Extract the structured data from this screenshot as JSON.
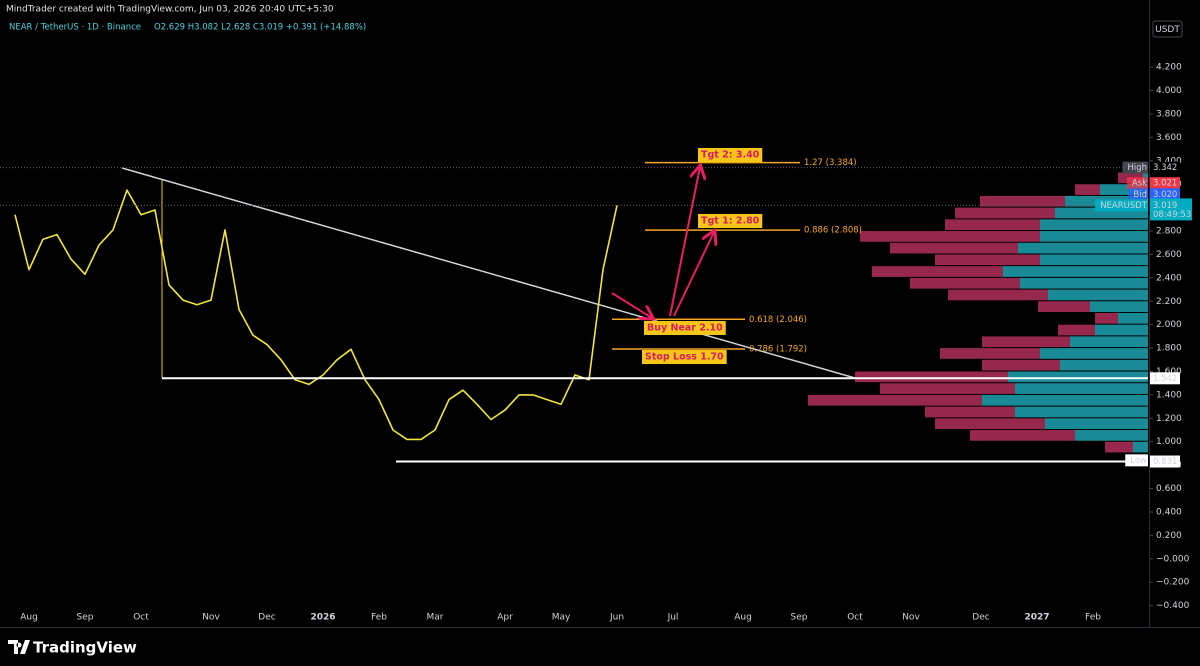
{
  "header": {
    "credit": "MindTrader created with TradingView.com, Jun 03, 2026 20:40 UTC+5:30",
    "symbol": "NEAR / TetherUS · 1D · Binance",
    "ohlc": "O2.629 H3.082 L2.628 C3.019 +0.391 (+14.88%)"
  },
  "chart_data": {
    "type": "line",
    "currency": "USDT",
    "categories": [
      null,
      "Aug",
      null,
      null,
      null,
      "Sep",
      null,
      null,
      null,
      "Oct",
      null,
      null,
      null,
      null,
      "Nov",
      null,
      null,
      null,
      "Dec",
      null,
      null,
      null,
      "2026",
      null,
      null,
      null,
      "Feb",
      null,
      null,
      null,
      "Mar",
      null,
      null,
      null,
      null,
      "Apr",
      null,
      null,
      null,
      "May",
      null,
      null,
      null,
      "Jun",
      null,
      null,
      null,
      "Jul",
      null,
      null,
      null,
      null,
      "Aug",
      null,
      null,
      null,
      "Sep",
      null,
      null,
      null,
      "Oct",
      null,
      null,
      null,
      "Nov",
      null,
      null,
      null,
      null,
      "Dec",
      null,
      null,
      null,
      "2027",
      null,
      null,
      null,
      "Feb",
      null,
      null,
      null
    ],
    "series": [
      {
        "name": "NEARUSDT",
        "color": "#f0e442",
        "values": [
          2.94,
          2.47,
          2.73,
          2.77,
          2.56,
          2.43,
          2.68,
          2.81,
          3.15,
          2.94,
          2.98,
          2.34,
          2.21,
          2.17,
          2.21,
          2.81,
          2.13,
          1.91,
          1.83,
          1.7,
          1.53,
          1.49,
          1.57,
          1.7,
          1.79,
          1.53,
          1.36,
          1.1,
          1.02,
          1.02,
          1.1,
          1.36,
          1.44,
          1.32,
          1.19,
          1.27,
          1.4,
          1.4,
          1.36,
          1.32,
          1.57,
          1.53,
          2.47,
          3.019,
          null,
          null,
          null,
          null,
          null,
          null,
          null,
          null,
          null,
          null,
          null,
          null,
          null,
          null,
          null,
          null,
          null,
          null,
          null,
          null,
          null,
          null,
          null,
          null,
          null,
          null,
          null,
          null,
          null,
          null,
          null,
          null,
          null,
          null,
          null,
          null,
          null
        ]
      }
    ],
    "ylim": [
      -0.54,
      4.62
    ],
    "yticks": [
      {
        "value": -0.4,
        "label": "−0.400"
      },
      {
        "value": -0.2,
        "label": "−0.200"
      },
      {
        "value": 0,
        "label": "−0.000"
      },
      {
        "value": 0.2,
        "label": "0.200"
      },
      {
        "value": 0.4,
        "label": "0.400"
      },
      {
        "value": 0.6,
        "label": "0.600"
      },
      {
        "value": 0.8,
        "label": "0.800"
      },
      {
        "value": 1.0,
        "label": "1.000"
      },
      {
        "value": 1.2,
        "label": "1.200"
      },
      {
        "value": 1.4,
        "label": "1.400"
      },
      {
        "value": 1.6,
        "label": "1.600"
      },
      {
        "value": 1.8,
        "label": "1.800"
      },
      {
        "value": 2.0,
        "label": "2.000"
      },
      {
        "value": 2.2,
        "label": "2.200"
      },
      {
        "value": 2.4,
        "label": "2.400"
      },
      {
        "value": 2.6,
        "label": "2.600"
      },
      {
        "value": 2.8,
        "label": "2.800"
      },
      {
        "value": 3.0,
        "label": "3.000"
      },
      {
        "value": 3.2,
        "label": "3.200"
      },
      {
        "value": 3.4,
        "label": "3.400"
      },
      {
        "value": 3.6,
        "label": "3.600"
      },
      {
        "value": 3.8,
        "label": "3.800"
      },
      {
        "value": 4.0,
        "label": "4.000"
      },
      {
        "value": 4.2,
        "label": "4.200"
      }
    ],
    "grid": false,
    "price_tags": [
      {
        "name": "High",
        "value": 3.342,
        "color": "#363a45",
        "line": "dotted"
      },
      {
        "name": "Ask",
        "value": 3.021,
        "color": "#f23645"
      },
      {
        "name": "Bid",
        "value": 3.02,
        "value_label": "3.020",
        "color": "#2962ff"
      },
      {
        "name": "NEARUSDT",
        "value": 3.019,
        "time": "08:49:53",
        "color": "#00acc1",
        "line": "dotted"
      },
      {
        "value": 1.542,
        "color": "#ffffff",
        "line": "solid"
      },
      {
        "name": "Low",
        "value": 0.841,
        "color": "#ffffff"
      },
      {
        "value": 0.831,
        "color": "#ffffff",
        "line": "solid"
      }
    ],
    "fib_levels": [
      {
        "label": "1.27 (3.384)",
        "value": 3.384
      },
      {
        "label": "0.886 (2.808)",
        "value": 2.808
      },
      {
        "label": "0.618 (2.046)",
        "value": 2.046
      },
      {
        "label": "0.786 (1.792)",
        "value": 1.792
      }
    ],
    "notes": [
      "Tgt 2: 3.40",
      "Tgt 1: 2.80",
      "Buy Near 2.10",
      "Stop Loss 1.70"
    ],
    "volume_profile": {
      "up_color": "#1c9aa6",
      "down_color": "#b02f5c",
      "bins": [
        3.3,
        3.2,
        3.1,
        3.0,
        2.9,
        2.8,
        2.7,
        2.6,
        2.5,
        2.4,
        2.3,
        2.2,
        2.1,
        2.0,
        1.9,
        1.8,
        1.7,
        1.6,
        1.5,
        1.4,
        1.3,
        1.2,
        1.1,
        1.0,
        0.9
      ],
      "up": [
        5,
        48,
        83,
        93,
        108,
        108,
        130,
        108,
        145,
        128,
        100,
        58,
        30,
        53,
        78,
        108,
        88,
        140,
        133,
        166,
        133,
        103,
        73,
        15
      ],
      "down": [
        25,
        25,
        85,
        100,
        95,
        180,
        128,
        105,
        131,
        110,
        100,
        52,
        23,
        37,
        88,
        100,
        78,
        153,
        135,
        174,
        90,
        110,
        105,
        28
      ]
    }
  },
  "footer": {
    "brand": "TradingView"
  }
}
